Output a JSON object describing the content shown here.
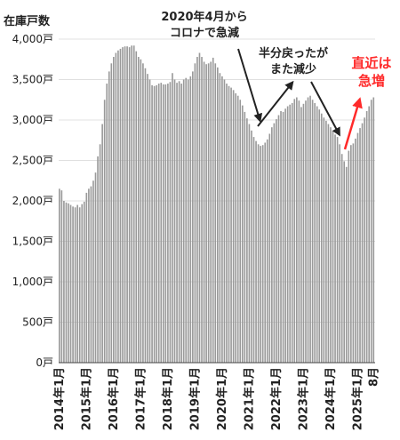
{
  "chart_data": {
    "type": "bar",
    "ylabel": "在庫戸数",
    "ylim": [
      0,
      4000
    ],
    "yticks": [
      {
        "value": 0,
        "label": "0戸"
      },
      {
        "value": 500,
        "label": "500戸"
      },
      {
        "value": 1000,
        "label": "1,000戸"
      },
      {
        "value": 1500,
        "label": "1,500戸"
      },
      {
        "value": 2000,
        "label": "2,000戸"
      },
      {
        "value": 2500,
        "label": "2,500戸"
      },
      {
        "value": 3000,
        "label": "3,000戸"
      },
      {
        "value": 3500,
        "label": "3,500戸"
      },
      {
        "value": 4000,
        "label": "4,000戸"
      }
    ],
    "start": "2014年1月",
    "end": "2025年8月",
    "xticks": [
      {
        "index": 0,
        "label": "2014年1月"
      },
      {
        "index": 12,
        "label": "2015年1月"
      },
      {
        "index": 24,
        "label": "2016年1月"
      },
      {
        "index": 36,
        "label": "2017年1月"
      },
      {
        "index": 48,
        "label": "2018年1月"
      },
      {
        "index": 60,
        "label": "2019年1月"
      },
      {
        "index": 72,
        "label": "2020年1月"
      },
      {
        "index": 84,
        "label": "2021年1月"
      },
      {
        "index": 96,
        "label": "2022年1月"
      },
      {
        "index": 108,
        "label": "2023年1月"
      },
      {
        "index": 120,
        "label": "2024年1月"
      },
      {
        "index": 132,
        "label": "2025年1月"
      },
      {
        "index": 139,
        "label": "8月"
      }
    ],
    "grid": true,
    "bar_color": "#9a9a9a",
    "values": [
      2150,
      2130,
      2000,
      1980,
      1970,
      1950,
      1930,
      1920,
      1950,
      1920,
      1960,
      1990,
      2100,
      2150,
      2180,
      2250,
      2350,
      2550,
      2700,
      2950,
      3250,
      3450,
      3600,
      3700,
      3780,
      3830,
      3860,
      3880,
      3900,
      3910,
      3910,
      3900,
      3920,
      3920,
      3850,
      3780,
      3750,
      3700,
      3640,
      3570,
      3500,
      3430,
      3420,
      3430,
      3450,
      3460,
      3440,
      3440,
      3450,
      3470,
      3580,
      3500,
      3460,
      3480,
      3450,
      3500,
      3520,
      3500,
      3540,
      3600,
      3700,
      3780,
      3830,
      3780,
      3720,
      3690,
      3700,
      3720,
      3770,
      3700,
      3650,
      3580,
      3540,
      3500,
      3450,
      3420,
      3400,
      3370,
      3330,
      3300,
      3250,
      3180,
      3100,
      3020,
      2950,
      2870,
      2790,
      2740,
      2700,
      2680,
      2690,
      2720,
      2760,
      2830,
      2910,
      2960,
      3010,
      3060,
      3110,
      3100,
      3140,
      3170,
      3190,
      3210,
      3260,
      3280,
      3240,
      3160,
      3200,
      3240,
      3280,
      3300,
      3250,
      3210,
      3170,
      3130,
      3080,
      3030,
      2990,
      2950,
      2910,
      2870,
      2820,
      2790,
      2700,
      2580,
      2490,
      2420,
      2620,
      2690,
      2710,
      2770,
      2840,
      2900,
      2960,
      3030,
      3110,
      3170,
      3250,
      3280
    ],
    "annotations": [
      {
        "lines": [
          "2020年4月から",
          "コロナで急減"
        ],
        "color": "#222222"
      },
      {
        "lines": [
          "半分戻ったが",
          "また減少"
        ],
        "color": "#222222"
      },
      {
        "lines": [
          "直近は",
          "急増"
        ],
        "color": "#ff2a2a"
      }
    ]
  }
}
